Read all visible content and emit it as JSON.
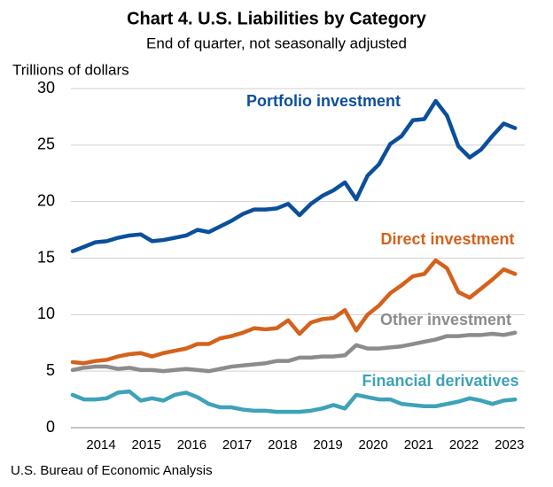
{
  "chart_data": {
    "type": "line",
    "title": "Chart 4. U.S. Liabilities by Category",
    "subtitle": "End of quarter, not seasonally adjusted",
    "y_label": "Trillions of dollars",
    "source": "U.S. Bureau of Economic Analysis",
    "categories": [
      null,
      null,
      "2014",
      null,
      null,
      null,
      "2015",
      null,
      null,
      null,
      "2016",
      null,
      null,
      null,
      "2017",
      null,
      null,
      null,
      "2018",
      null,
      null,
      null,
      "2019",
      null,
      null,
      null,
      "2020",
      null,
      null,
      null,
      "2021",
      null,
      null,
      null,
      "2022",
      null,
      null,
      null,
      "2023",
      null
    ],
    "ylim": [
      0,
      30
    ],
    "yticks": [
      0,
      5,
      10,
      15,
      20,
      25,
      30
    ],
    "grid": true,
    "series": [
      {
        "name": "Portfolio investment",
        "color": "#0b4f9c",
        "values": [
          15.6,
          16.0,
          16.4,
          16.5,
          16.8,
          17.0,
          17.1,
          16.5,
          16.6,
          16.8,
          17.0,
          17.5,
          17.3,
          17.8,
          18.3,
          18.9,
          19.3,
          19.3,
          19.4,
          19.8,
          18.8,
          19.8,
          20.5,
          21.0,
          21.7,
          20.2,
          22.3,
          23.3,
          25.1,
          25.8,
          27.2,
          27.3,
          28.9,
          27.6,
          24.9,
          23.9,
          24.6,
          25.8,
          26.9,
          26.5
        ]
      },
      {
        "name": "Direct investment",
        "color": "#d4621c",
        "values": [
          5.8,
          5.7,
          5.9,
          6.0,
          6.3,
          6.5,
          6.6,
          6.3,
          6.6,
          6.8,
          7.0,
          7.4,
          7.4,
          7.9,
          8.1,
          8.4,
          8.8,
          8.7,
          8.8,
          9.5,
          8.3,
          9.3,
          9.6,
          9.7,
          10.4,
          8.6,
          10.0,
          10.8,
          11.9,
          12.6,
          13.4,
          13.6,
          14.8,
          14.1,
          12.0,
          11.5,
          12.3,
          13.1,
          14.0,
          13.6
        ]
      },
      {
        "name": "Other investment",
        "color": "#8c8c8c",
        "values": [
          5.1,
          5.3,
          5.4,
          5.4,
          5.2,
          5.3,
          5.1,
          5.1,
          5.0,
          5.1,
          5.2,
          5.1,
          5.0,
          5.2,
          5.4,
          5.5,
          5.6,
          5.7,
          5.9,
          5.9,
          6.2,
          6.2,
          6.3,
          6.3,
          6.4,
          7.3,
          7.0,
          7.0,
          7.1,
          7.2,
          7.4,
          7.6,
          7.8,
          8.1,
          8.1,
          8.2,
          8.2,
          8.3,
          8.2,
          8.4
        ]
      },
      {
        "name": "Financial derivatives",
        "color": "#3ea2b8",
        "values": [
          2.9,
          2.5,
          2.5,
          2.6,
          3.1,
          3.2,
          2.4,
          2.6,
          2.4,
          2.9,
          3.1,
          2.7,
          2.1,
          1.8,
          1.8,
          1.6,
          1.5,
          1.5,
          1.4,
          1.4,
          1.4,
          1.5,
          1.7,
          2.0,
          1.7,
          2.9,
          2.7,
          2.5,
          2.5,
          2.1,
          2.0,
          1.9,
          1.9,
          2.1,
          2.3,
          2.6,
          2.4,
          2.1,
          2.4,
          2.5
        ]
      }
    ]
  }
}
